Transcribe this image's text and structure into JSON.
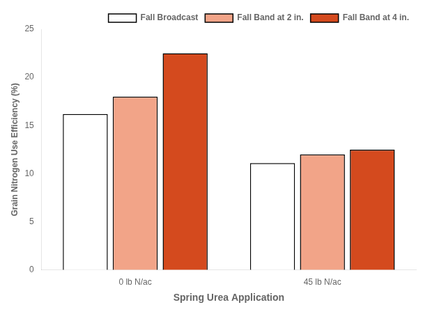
{
  "chart_data": {
    "type": "bar",
    "categories": [
      "0 lb N/ac",
      "45 lb N/ac"
    ],
    "series": [
      {
        "name": "Fall Broadcast",
        "color": "#ffffff",
        "values": [
          16.2,
          11.1
        ]
      },
      {
        "name": "Fall Band at 2 in.",
        "color": "#f2a488",
        "values": [
          18.0,
          12.0
        ]
      },
      {
        "name": "Fall Band at 4 in.",
        "color": "#d44a1e",
        "values": [
          22.5,
          12.5
        ]
      }
    ],
    "xlabel": "Spring Urea Application",
    "ylabel": "Grain Nitrogen Use Efficiency (%)",
    "ylim": [
      0,
      25
    ],
    "yticks": [
      0,
      5,
      10,
      15,
      20,
      25
    ],
    "grid": false,
    "legend": "upper right"
  }
}
